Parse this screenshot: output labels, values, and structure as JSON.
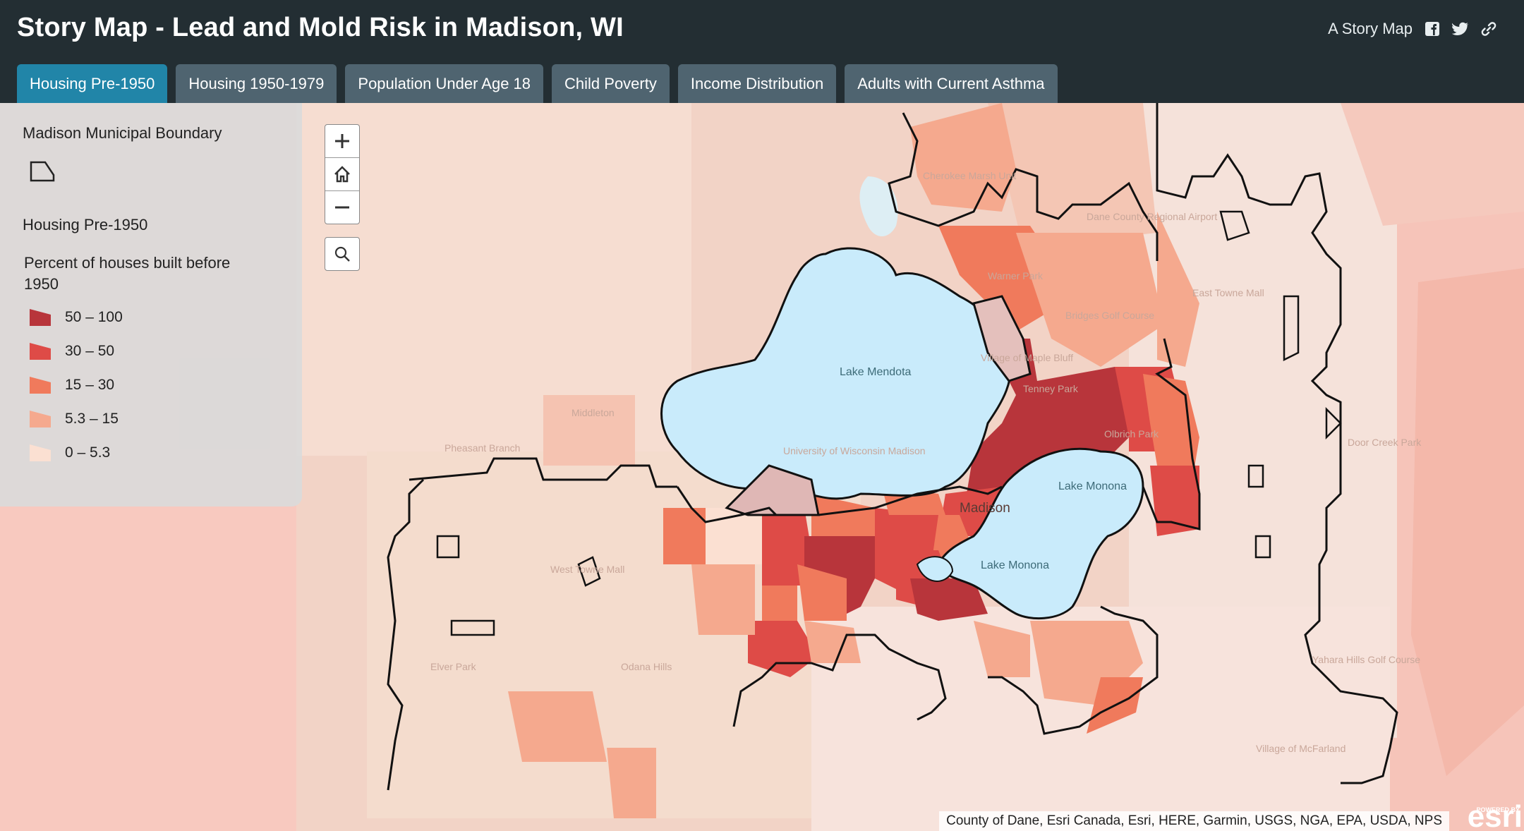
{
  "header": {
    "title": "Story Map - Lead and Mold Risk in Madison, WI",
    "brand_label": "A Story Map",
    "share_icons": [
      "facebook-icon",
      "twitter-icon",
      "link-icon"
    ]
  },
  "tabs": [
    {
      "label": "Housing Pre-1950",
      "active": true
    },
    {
      "label": "Housing 1950-1979",
      "active": false
    },
    {
      "label": "Population Under Age 18",
      "active": false
    },
    {
      "label": "Child Poverty",
      "active": false
    },
    {
      "label": "Income Distribution",
      "active": false
    },
    {
      "label": "Adults with Current Asthma",
      "active": false
    }
  ],
  "legend": {
    "boundary_title": "Madison Municipal Boundary",
    "layer_title": "Housing Pre-1950",
    "field_description": "Percent of houses built before 1950",
    "classes": [
      {
        "label": "50 – 100",
        "color": "#b8353b"
      },
      {
        "label": "30 – 50",
        "color": "#de4b47"
      },
      {
        "label": "15 – 30",
        "color": "#f07a5c"
      },
      {
        "label": "5.3 – 15",
        "color": "#f5a98e"
      },
      {
        "label": "0 – 5.3",
        "color": "#fbe0d2"
      }
    ]
  },
  "map": {
    "controls": [
      "zoom-in",
      "home",
      "zoom-out",
      "search"
    ],
    "water_labels": [
      "Lake Mendota",
      "Lake Monona",
      "Lake Monona"
    ],
    "place_labels": [
      "Madison",
      "Village of Maple Bluff",
      "University of Wisconsin Madison",
      "Warner Park",
      "Cherokee Marsh Unit",
      "Dane County Regional Airport",
      "Bridges Golf Course",
      "Olbrich Park",
      "East Towne Mall",
      "West Towne Mall",
      "Door Creek Park",
      "Yahara Hills Golf Course",
      "Village of McFarland",
      "Tenney Park",
      "Middleton",
      "Pheasant Branch",
      "Elver Park",
      "Odana Hills"
    ],
    "attribution": "County of Dane, Esri Canada, Esri, HERE, Garmin, USGS, NGA, EPA, USDA, NPS",
    "logo_text": "esri",
    "logo_tagline": "POWERED BY"
  }
}
